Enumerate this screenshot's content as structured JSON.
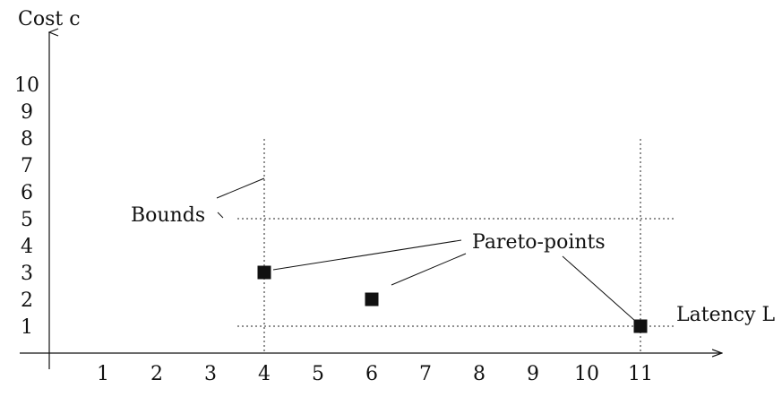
{
  "chart_data": {
    "type": "scatter",
    "title": "",
    "xlabel": "Latency L",
    "ylabel": "Cost c",
    "x_ticks": [
      1,
      2,
      3,
      4,
      5,
      6,
      7,
      8,
      9,
      10,
      11
    ],
    "y_ticks": [
      1,
      2,
      3,
      4,
      5,
      6,
      7,
      8,
      9,
      10
    ],
    "points": [
      {
        "x": 4,
        "y": 3
      },
      {
        "x": 6,
        "y": 2
      },
      {
        "x": 11,
        "y": 1
      }
    ],
    "bounds": {
      "vertical_x": [
        4,
        11
      ],
      "horizontal_y": [
        1,
        5
      ]
    },
    "annotations": {
      "pareto": "Pareto-points",
      "bounds": "Bounds"
    },
    "xlim": [
      0,
      12.5
    ],
    "ylim": [
      0,
      12
    ]
  }
}
